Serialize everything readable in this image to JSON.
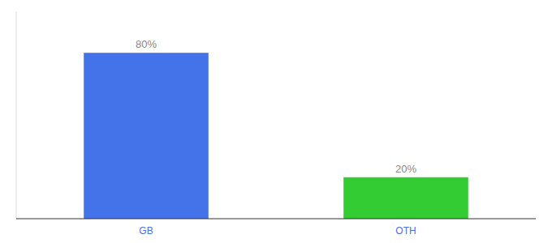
{
  "chart_data": {
    "type": "bar",
    "categories": [
      "GB",
      "OTH"
    ],
    "values": [
      80,
      20
    ],
    "value_labels": [
      "80%",
      "20%"
    ],
    "colors": [
      "#4472e8",
      "#33cc33"
    ],
    "ylim": [
      0,
      100
    ],
    "data_labels": true,
    "tick_labels": "x"
  }
}
